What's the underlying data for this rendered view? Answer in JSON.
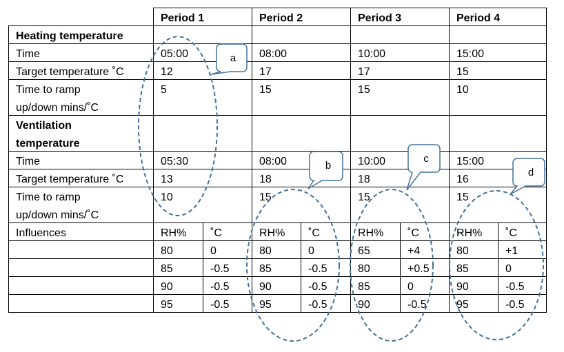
{
  "table": {
    "periods": [
      "Period 1",
      "Period 2",
      "Period 3",
      "Period 4"
    ],
    "rows": [
      {
        "label": "Heating temperature"
      },
      {
        "label": "Time",
        "cells": [
          "05:00",
          "08:00",
          "10:00",
          "15:00"
        ]
      },
      {
        "label": "Target temperature ˚C",
        "cells": [
          "12",
          "17",
          "17",
          "15"
        ]
      },
      {
        "label": "Time to ramp up/down mins/˚C",
        "cells": [
          "5",
          "15",
          "15",
          "10"
        ]
      },
      {
        "label": "Ventilation temperature"
      },
      {
        "label": "Time",
        "cells": [
          "05:30",
          "08:00",
          "10:00",
          "15:00"
        ]
      },
      {
        "label": "Target temperature ˚C",
        "cells": [
          "13",
          "18",
          "18",
          "16"
        ]
      },
      {
        "label": "Time to ramp up/down mins/˚C",
        "cells": [
          "10",
          "15",
          "15",
          "15"
        ]
      },
      {
        "label": "Influences",
        "cells": [
          "RH%",
          "˚C",
          "RH%",
          "˚C",
          "RH%",
          "˚C",
          "RH%",
          "˚C"
        ]
      },
      {
        "cells": [
          "80",
          "0",
          "80",
          "0",
          "65",
          "+4",
          "80",
          "+1"
        ]
      },
      {
        "cells": [
          "85",
          "-0.5",
          "85",
          "-0.5",
          "80",
          "+0.5",
          "85",
          "0"
        ]
      },
      {
        "cells": [
          "90",
          "-0.5",
          "90",
          "-0.5",
          "85",
          "0",
          "90",
          "-0.5"
        ]
      },
      {
        "cells": [
          "95",
          "-0.5",
          "95",
          "-0.5",
          "90",
          "-0.5",
          "95",
          "-0.5"
        ]
      }
    ]
  },
  "callouts": [
    "a",
    "b",
    "c",
    "d"
  ]
}
